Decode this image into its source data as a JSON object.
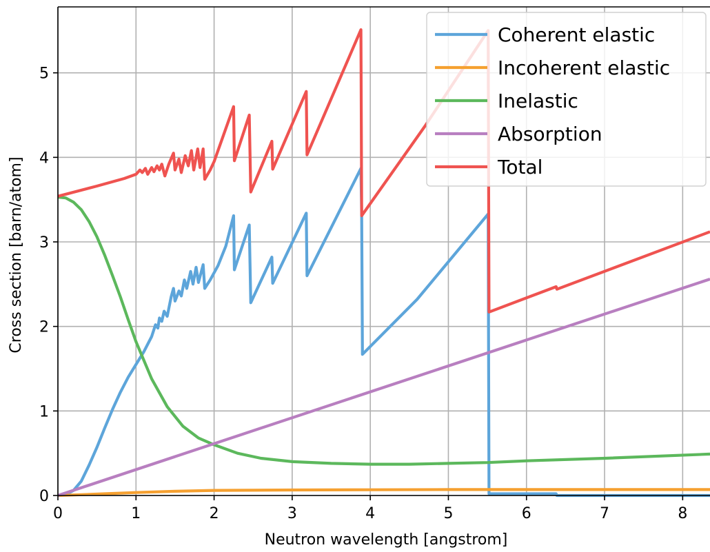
{
  "chart_data": {
    "type": "line",
    "title": "",
    "xlabel": "Neutron wavelength [angstrom]",
    "ylabel": "Cross section [barn/atom]",
    "xlim": [
      0,
      8.35
    ],
    "ylim": [
      0,
      5.78
    ],
    "xticks": [
      0,
      1,
      2,
      3,
      4,
      5,
      6,
      7,
      8
    ],
    "yticks": [
      0,
      1,
      2,
      3,
      4,
      5
    ],
    "grid": true,
    "legend_position": "top-right",
    "series": [
      {
        "name": "Coherent elastic",
        "color": "#5da5da",
        "points": [
          [
            0,
            0
          ],
          [
            0.1,
            0.01
          ],
          [
            0.2,
            0.06
          ],
          [
            0.3,
            0.17
          ],
          [
            0.4,
            0.36
          ],
          [
            0.5,
            0.57
          ],
          [
            0.6,
            0.8
          ],
          [
            0.7,
            1.02
          ],
          [
            0.8,
            1.22
          ],
          [
            0.9,
            1.4
          ],
          [
            1.0,
            1.55
          ],
          [
            1.1,
            1.7
          ],
          [
            1.2,
            1.88
          ],
          [
            1.25,
            2.02
          ],
          [
            1.28,
            1.98
          ],
          [
            1.3,
            2.1
          ],
          [
            1.33,
            2.06
          ],
          [
            1.36,
            2.18
          ],
          [
            1.4,
            2.12
          ],
          [
            1.45,
            2.35
          ],
          [
            1.48,
            2.45
          ],
          [
            1.5,
            2.3
          ],
          [
            1.55,
            2.42
          ],
          [
            1.58,
            2.36
          ],
          [
            1.62,
            2.55
          ],
          [
            1.65,
            2.45
          ],
          [
            1.7,
            2.65
          ],
          [
            1.73,
            2.5
          ],
          [
            1.77,
            2.7
          ],
          [
            1.8,
            2.52
          ],
          [
            1.86,
            2.73
          ],
          [
            1.88,
            2.45
          ],
          [
            1.95,
            2.55
          ],
          [
            2.05,
            2.72
          ],
          [
            2.15,
            2.95
          ],
          [
            2.25,
            3.31
          ],
          [
            2.26,
            2.67
          ],
          [
            2.45,
            3.2
          ],
          [
            2.47,
            2.28
          ],
          [
            2.74,
            2.82
          ],
          [
            2.75,
            2.51
          ],
          [
            3.18,
            3.34
          ],
          [
            3.19,
            2.6
          ],
          [
            3.88,
            3.87
          ],
          [
            3.89,
            3.3
          ],
          [
            3.9,
            1.67
          ],
          [
            4.6,
            2.32
          ],
          [
            5.51,
            3.33
          ],
          [
            5.52,
            0.02
          ],
          [
            6.38,
            0.02
          ],
          [
            6.39,
            0
          ],
          [
            8.35,
            0
          ]
        ]
      },
      {
        "name": "Incoherent elastic",
        "color": "#f5a030",
        "points": [
          [
            0,
            0
          ],
          [
            0.3,
            0.01
          ],
          [
            0.6,
            0.02
          ],
          [
            1.0,
            0.035
          ],
          [
            1.5,
            0.05
          ],
          [
            2.0,
            0.06
          ],
          [
            3.0,
            0.065
          ],
          [
            4.0,
            0.068
          ],
          [
            5.0,
            0.07
          ],
          [
            6.0,
            0.07
          ],
          [
            7.0,
            0.07
          ],
          [
            8.35,
            0.07
          ]
        ]
      },
      {
        "name": "Inelastic",
        "color": "#5cb85c",
        "points": [
          [
            0,
            3.53
          ],
          [
            0.1,
            3.52
          ],
          [
            0.2,
            3.47
          ],
          [
            0.3,
            3.38
          ],
          [
            0.4,
            3.24
          ],
          [
            0.5,
            3.06
          ],
          [
            0.6,
            2.84
          ],
          [
            0.7,
            2.6
          ],
          [
            0.8,
            2.35
          ],
          [
            0.9,
            2.08
          ],
          [
            1.0,
            1.82
          ],
          [
            1.2,
            1.38
          ],
          [
            1.4,
            1.05
          ],
          [
            1.6,
            0.82
          ],
          [
            1.8,
            0.68
          ],
          [
            2.0,
            0.6
          ],
          [
            2.3,
            0.5
          ],
          [
            2.6,
            0.44
          ],
          [
            3.0,
            0.4
          ],
          [
            3.5,
            0.38
          ],
          [
            4.0,
            0.37
          ],
          [
            4.5,
            0.37
          ],
          [
            5.0,
            0.38
          ],
          [
            5.5,
            0.39
          ],
          [
            6.0,
            0.41
          ],
          [
            7.0,
            0.44
          ],
          [
            8.35,
            0.49
          ]
        ]
      },
      {
        "name": "Absorption",
        "color": "#b87fc0",
        "points": [
          [
            0,
            0
          ],
          [
            8.35,
            2.56
          ]
        ]
      },
      {
        "name": "Total",
        "color": "#ef5350",
        "points": [
          [
            0,
            3.54
          ],
          [
            0.5,
            3.66
          ],
          [
            0.85,
            3.75
          ],
          [
            1.0,
            3.8
          ],
          [
            1.05,
            3.85
          ],
          [
            1.08,
            3.82
          ],
          [
            1.12,
            3.87
          ],
          [
            1.15,
            3.8
          ],
          [
            1.2,
            3.88
          ],
          [
            1.23,
            3.83
          ],
          [
            1.27,
            3.9
          ],
          [
            1.3,
            3.85
          ],
          [
            1.33,
            3.92
          ],
          [
            1.37,
            3.78
          ],
          [
            1.42,
            3.92
          ],
          [
            1.48,
            4.05
          ],
          [
            1.5,
            3.85
          ],
          [
            1.55,
            3.98
          ],
          [
            1.58,
            3.82
          ],
          [
            1.63,
            4.02
          ],
          [
            1.67,
            3.9
          ],
          [
            1.71,
            4.08
          ],
          [
            1.74,
            3.85
          ],
          [
            1.79,
            4.1
          ],
          [
            1.82,
            3.88
          ],
          [
            1.86,
            4.1
          ],
          [
            1.88,
            3.74
          ],
          [
            1.95,
            3.85
          ],
          [
            2.0,
            3.95
          ],
          [
            2.25,
            4.6
          ],
          [
            2.26,
            3.96
          ],
          [
            2.45,
            4.5
          ],
          [
            2.47,
            3.59
          ],
          [
            2.74,
            4.19
          ],
          [
            2.75,
            3.86
          ],
          [
            3.18,
            4.78
          ],
          [
            3.19,
            4.03
          ],
          [
            3.88,
            5.51
          ],
          [
            3.89,
            3.31
          ],
          [
            4.7,
            4.37
          ],
          [
            5.51,
            5.5
          ],
          [
            5.52,
            2.17
          ],
          [
            6.38,
            2.47
          ],
          [
            6.39,
            2.44
          ],
          [
            8.35,
            3.12
          ]
        ]
      }
    ]
  }
}
